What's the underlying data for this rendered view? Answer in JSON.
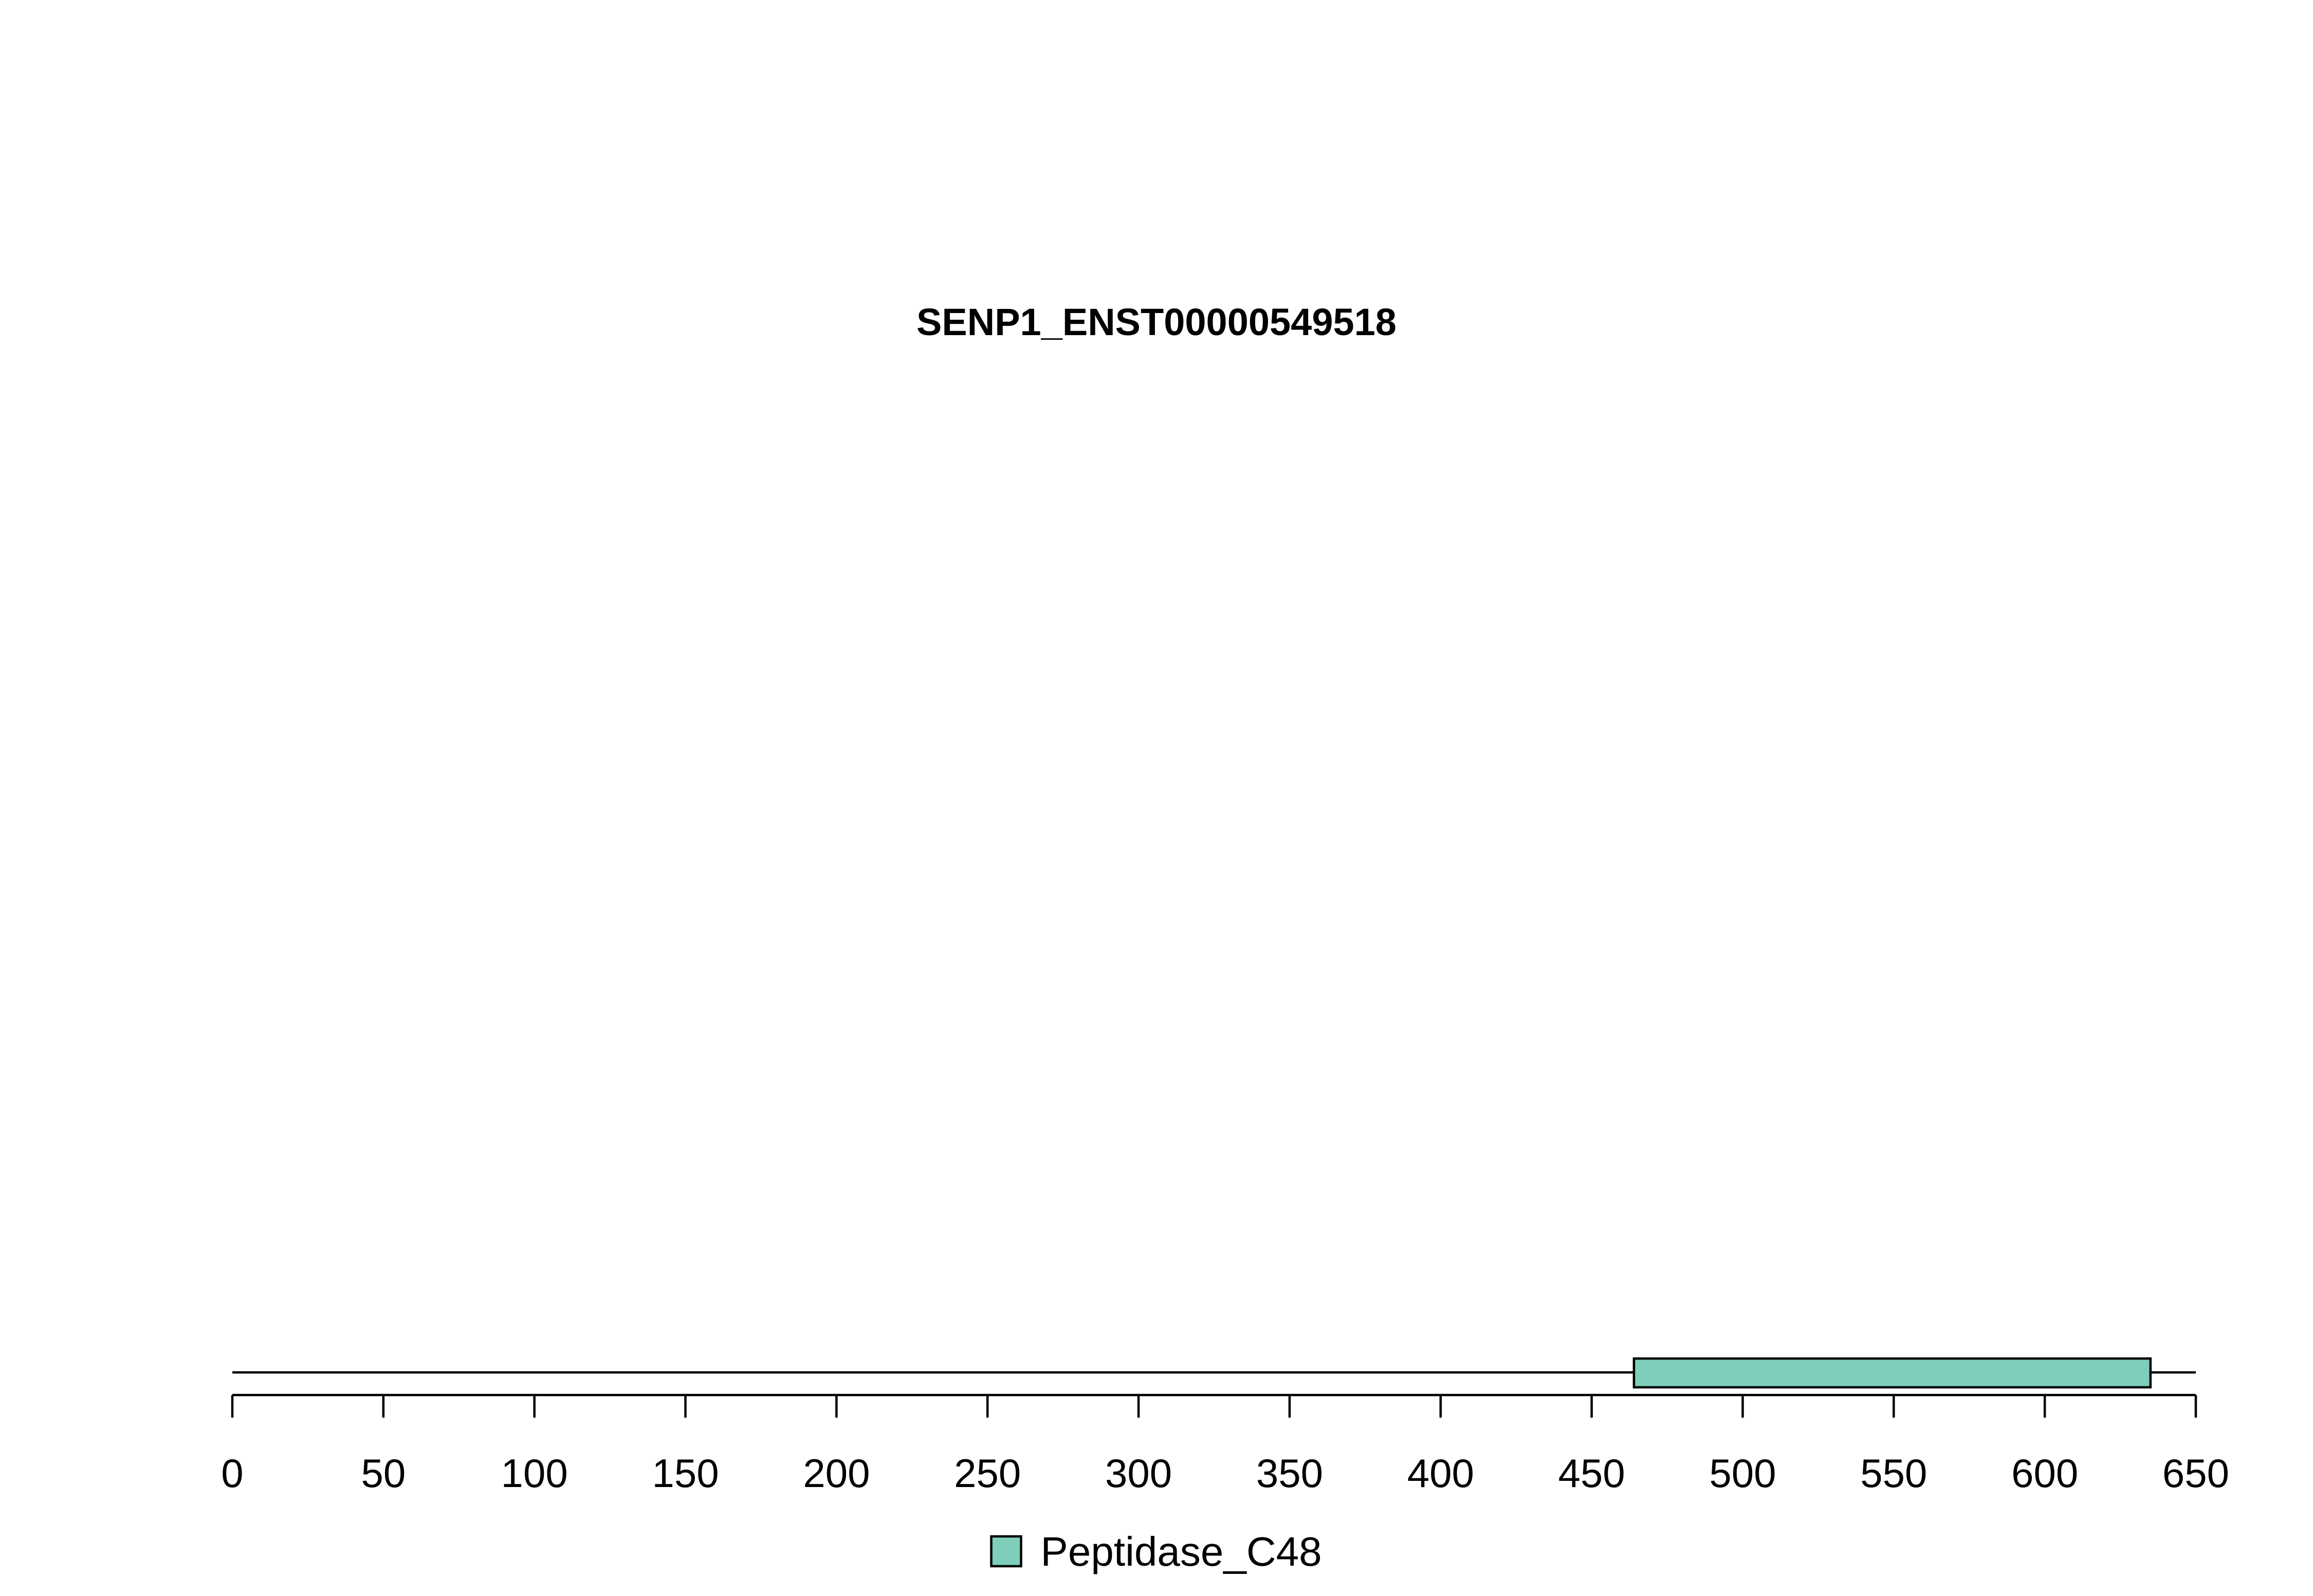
{
  "chart_data": {
    "type": "bar",
    "title": "SENP1_ENST00000549518",
    "xlabel": "",
    "ylabel": "",
    "xlim": [
      0,
      650
    ],
    "protein_length": 650,
    "x_ticks": [
      0,
      50,
      100,
      150,
      200,
      250,
      300,
      350,
      400,
      450,
      500,
      550,
      600,
      650
    ],
    "domains": [
      {
        "name": "Peptidase_C48",
        "start": 464,
        "end": 635,
        "color": "#7fcdbb"
      }
    ],
    "legend": {
      "placement": "bottom-center",
      "entries": [
        {
          "label": "Peptidase_C48",
          "color": "#7fcdbb"
        }
      ]
    },
    "grid": false
  }
}
